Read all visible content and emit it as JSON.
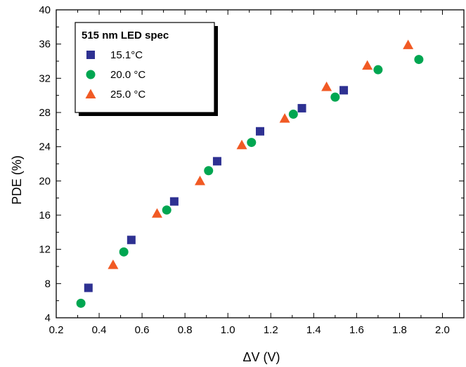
{
  "chart_data": {
    "type": "scatter",
    "title": "",
    "xlabel": "ΔV (V)",
    "ylabel": "PDE (%)",
    "xlim": [
      0.2,
      2.1
    ],
    "ylim": [
      4,
      40
    ],
    "xticks": [
      "0.2",
      "0.4",
      "0.6",
      "0.8",
      "1.0",
      "1.2",
      "1.4",
      "1.6",
      "1.8",
      "2.0"
    ],
    "yticks": [
      "4",
      "8",
      "12",
      "16",
      "20",
      "24",
      "28",
      "32",
      "36",
      "40"
    ],
    "grid": false,
    "legend": {
      "title": "515 nm LED spec",
      "placement": "top-left"
    },
    "series": [
      {
        "name": "15.1°C",
        "marker": "square",
        "color": "#2E3192",
        "x": [
          0.35,
          0.55,
          0.75,
          0.95,
          1.15,
          1.345,
          1.54
        ],
        "y": [
          7.5,
          13.1,
          17.6,
          22.3,
          25.8,
          28.5,
          30.6
        ]
      },
      {
        "name": "20.0 °C",
        "marker": "circle",
        "color": "#00A651",
        "x": [
          0.315,
          0.515,
          0.715,
          0.91,
          1.11,
          1.305,
          1.5,
          1.7,
          1.89
        ],
        "y": [
          5.7,
          11.7,
          16.6,
          21.2,
          24.5,
          27.8,
          29.8,
          33.0,
          34.2
        ]
      },
      {
        "name": "25.0 °C",
        "marker": "triangle",
        "color": "#F15A24",
        "x": [
          0.465,
          0.67,
          0.87,
          1.065,
          1.265,
          1.46,
          1.65,
          1.84
        ],
        "y": [
          10.2,
          16.2,
          20.0,
          24.2,
          27.3,
          31.0,
          33.5,
          35.9
        ]
      }
    ]
  }
}
